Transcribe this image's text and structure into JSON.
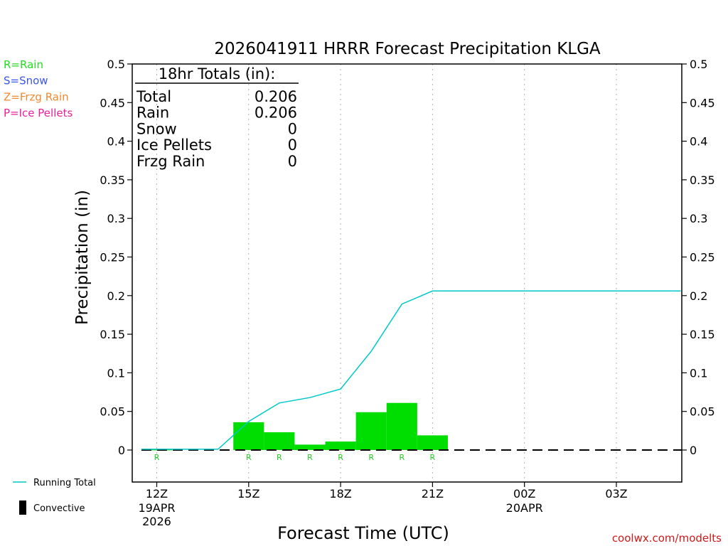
{
  "chart_data": {
    "type": "bar",
    "title": "2026041911 HRRR Forecast Precipitation KLGA",
    "xlabel": "Forecast Time (UTC)",
    "ylabel": "Precipitation (in)",
    "ylim": [
      -0.04,
      0.5
    ],
    "yticks": [
      "0",
      "0.05",
      "0.1",
      "0.15",
      "0.2",
      "0.25",
      "0.3",
      "0.35",
      "0.4",
      "0.45",
      "0.5"
    ],
    "xlim_hours": [
      11.2,
      29.1
    ],
    "grid": "vertical dotted at 3-hour ticks",
    "xticks": [
      {
        "hour": 12,
        "label": "12Z",
        "date": "19APR",
        "year": "2026"
      },
      {
        "hour": 15,
        "label": "15Z",
        "date": "",
        "year": ""
      },
      {
        "hour": 18,
        "label": "18Z",
        "date": "",
        "year": ""
      },
      {
        "hour": 21,
        "label": "21Z",
        "date": "",
        "year": ""
      },
      {
        "hour": 24,
        "label": "00Z",
        "date": "20APR",
        "year": ""
      },
      {
        "hour": 27,
        "label": "03Z",
        "date": "",
        "year": ""
      }
    ],
    "hourly_bars": {
      "name": "Rain",
      "color": "#00dd00",
      "hours": [
        12,
        13,
        14,
        15,
        16,
        17,
        18,
        19,
        20,
        21
      ],
      "values": [
        0.001,
        0.0,
        0.0,
        0.036,
        0.023,
        0.007,
        0.011,
        0.049,
        0.061,
        0.019
      ]
    },
    "type_markers": [
      {
        "hour": 12,
        "label": "R"
      },
      {
        "hour": 15,
        "label": "R"
      },
      {
        "hour": 16,
        "label": "R"
      },
      {
        "hour": 17,
        "label": "R"
      },
      {
        "hour": 18,
        "label": "R"
      },
      {
        "hour": 19,
        "label": "R"
      },
      {
        "hour": 20,
        "label": "R"
      },
      {
        "hour": 21,
        "label": "R"
      }
    ],
    "running_total": {
      "name": "Running Total",
      "color": "#00c8c8",
      "hours": [
        11.5,
        14,
        15,
        16,
        17,
        18,
        19,
        20,
        21,
        29.1
      ],
      "values": [
        0.001,
        0.001,
        0.037,
        0.061,
        0.068,
        0.079,
        0.128,
        0.189,
        0.206,
        0.206
      ]
    },
    "totals_box": {
      "header": "18hr Totals (in):",
      "rows": [
        {
          "label": "Total",
          "value": "0.206"
        },
        {
          "label": "Rain",
          "value": "0.206"
        },
        {
          "label": "Snow",
          "value": "0"
        },
        {
          "label": "Ice Pellets",
          "value": "0"
        },
        {
          "label": "Frzg Rain",
          "value": "0"
        }
      ]
    },
    "legend_types": [
      {
        "label": "R=Rain",
        "color": "#22dd22"
      },
      {
        "label": "S=Snow",
        "color": "#3b55e8"
      },
      {
        "label": "Z=Frzg Rain",
        "color": "#f08a30"
      },
      {
        "label": "P=Ice Pellets",
        "color": "#e8209a"
      }
    ],
    "legend_bottom": [
      {
        "label": "Running Total",
        "kind": "line",
        "color": "#00c8c8"
      },
      {
        "label": "Convective",
        "kind": "bar",
        "color": "#000000"
      }
    ],
    "credit": "coolwx.com/modelts",
    "credit_color": "#cc1a1a"
  }
}
